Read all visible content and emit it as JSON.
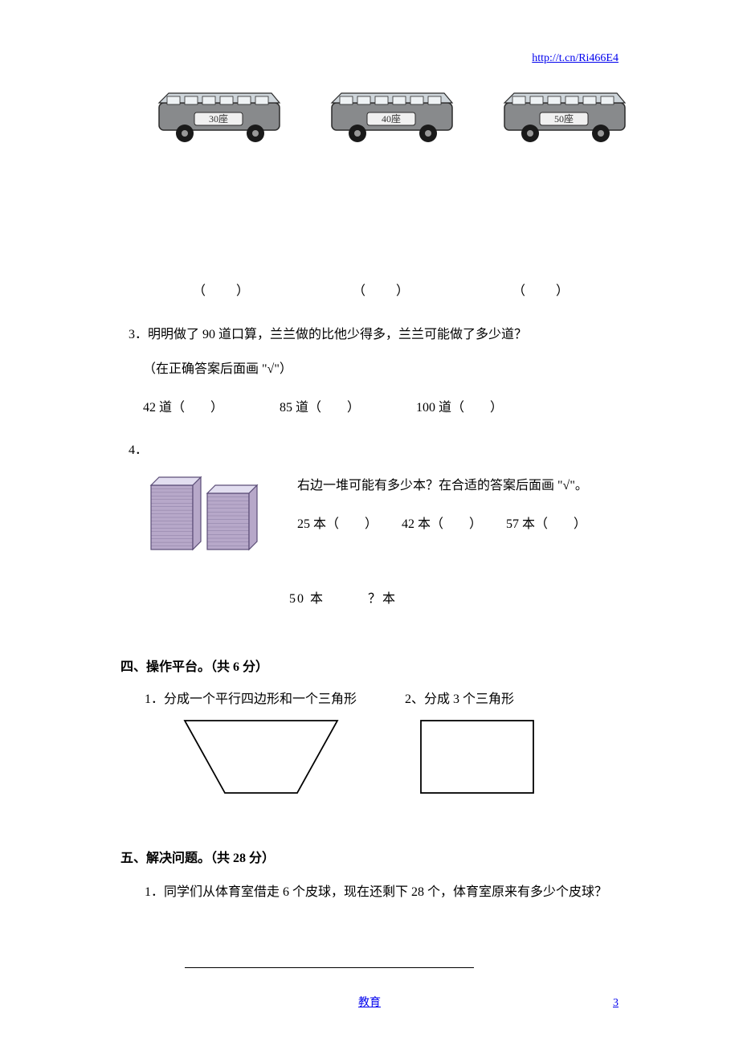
{
  "header": {
    "link_text": "http://t.cn/Ri466E4"
  },
  "buses": {
    "labels": [
      "30座",
      "40座",
      "50座"
    ],
    "body_color": "#888a8c",
    "outline_color": "#2b2b2b",
    "wheel_color": "#1a1a1a",
    "window_color": "#cfd6db"
  },
  "q2": {
    "paren": "（　　）"
  },
  "q3": {
    "prompt": "3．明明做了 90 道口算，兰兰做的比他少得多，兰兰可能做了多少道？",
    "note": "（在正确答案后面画 \"√\"）",
    "options": [
      "42 道（　　）",
      "85 道（　　）",
      "100 道（　　）"
    ]
  },
  "q4": {
    "label": "4．",
    "prompt": "右边一堆可能有多少本？在合适的答案后面画 \"√\"。",
    "options": [
      "25 本（　　）",
      "42 本（　　）",
      "57 本（　　）"
    ],
    "below": "50 本　　　？本",
    "book_colors": {
      "fill": "#b7a8c9",
      "outline": "#5b4d77",
      "top": "#e2def0"
    }
  },
  "section4": {
    "title": "四、操作平台。（共 6 分）",
    "item1": "1．分成一个平行四边形和一个三角形",
    "item2": "2、分成 3 个三角形"
  },
  "shapes": {
    "trapezoid": {
      "stroke": "#000000",
      "stroke_width": 1.8
    },
    "rectangle": {
      "stroke": "#000000",
      "stroke_width": 1.8
    }
  },
  "section5": {
    "title": "五、解决问题。（共 28 分）",
    "q1": "1．同学们从体育室借走 6 个皮球，现在还剩下 28 个，体育室原来有多少个皮球？"
  },
  "footer": {
    "text": "教育",
    "page": "3"
  }
}
